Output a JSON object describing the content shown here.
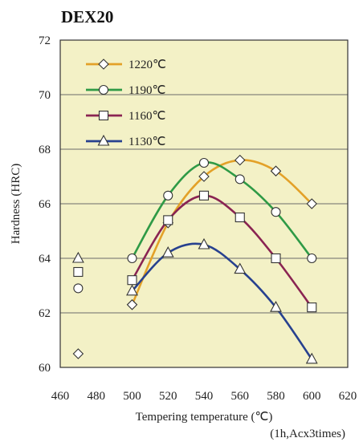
{
  "chart_data": {
    "type": "line",
    "title": "DEX20",
    "xlabel": "Tempering temperature (℃)",
    "xlabel_note": "(1h,Acx3times)",
    "ylabel": "Hardness (HRC)",
    "xlim": [
      460,
      620
    ],
    "ylim": [
      60,
      72
    ],
    "x_ticks": [
      460,
      480,
      500,
      520,
      540,
      560,
      580,
      600,
      620
    ],
    "y_ticks": [
      60,
      62,
      64,
      66,
      68,
      70,
      72
    ],
    "grid": "horizontal",
    "legend_position": "top-left",
    "plot_background": "#f3f1c6",
    "series": [
      {
        "name": "1220℃",
        "color": "#e3a128",
        "marker": "diamond",
        "as_quenched": {
          "x": 470,
          "y": 60.5
        },
        "points": [
          {
            "x": 500,
            "y": 62.3
          },
          {
            "x": 520,
            "y": 65.3
          },
          {
            "x": 540,
            "y": 67.0
          },
          {
            "x": 560,
            "y": 67.6
          },
          {
            "x": 580,
            "y": 67.2
          },
          {
            "x": 600,
            "y": 66.0
          }
        ]
      },
      {
        "name": "1190℃",
        "color": "#2f9a46",
        "marker": "circle",
        "as_quenched": {
          "x": 470,
          "y": 62.9
        },
        "points": [
          {
            "x": 500,
            "y": 64.0
          },
          {
            "x": 520,
            "y": 66.3
          },
          {
            "x": 540,
            "y": 67.5
          },
          {
            "x": 560,
            "y": 66.9
          },
          {
            "x": 580,
            "y": 65.7
          },
          {
            "x": 600,
            "y": 64.0
          }
        ]
      },
      {
        "name": "1160℃",
        "color": "#8a2452",
        "marker": "square",
        "as_quenched": {
          "x": 470,
          "y": 63.5
        },
        "points": [
          {
            "x": 500,
            "y": 63.2
          },
          {
            "x": 520,
            "y": 65.4
          },
          {
            "x": 540,
            "y": 66.3
          },
          {
            "x": 560,
            "y": 65.5
          },
          {
            "x": 580,
            "y": 64.0
          },
          {
            "x": 600,
            "y": 62.2
          }
        ]
      },
      {
        "name": "1130℃",
        "color": "#27418f",
        "marker": "triangle",
        "as_quenched": {
          "x": 470,
          "y": 64.0
        },
        "points": [
          {
            "x": 500,
            "y": 62.8
          },
          {
            "x": 520,
            "y": 64.2
          },
          {
            "x": 540,
            "y": 64.5
          },
          {
            "x": 560,
            "y": 63.6
          },
          {
            "x": 580,
            "y": 62.2
          },
          {
            "x": 600,
            "y": 60.3
          }
        ]
      }
    ]
  }
}
